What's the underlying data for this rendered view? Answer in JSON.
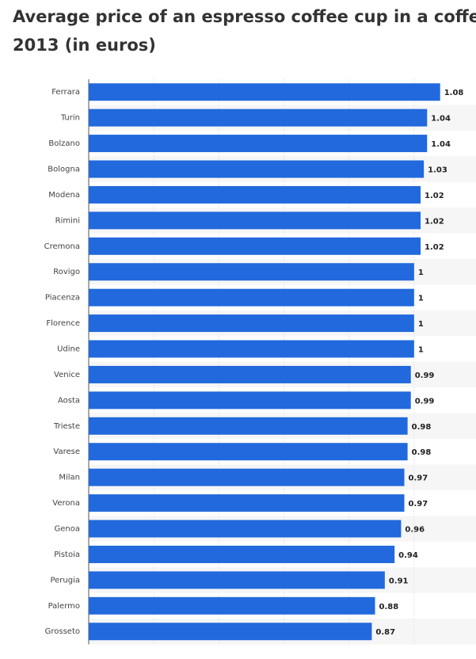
{
  "chart_data": {
    "type": "bar",
    "orientation": "horizontal",
    "title_lines": [
      "Average price of an espresso coffee cup in a coffee",
      "2013 (in euros)"
    ],
    "categories": [
      "Ferrara",
      "Turin",
      "Bolzano",
      "Bologna",
      "Modena",
      "Rimini",
      "Cremona",
      "Rovigo",
      "Piacenza",
      "Florence",
      "Udine",
      "Venice",
      "Aosta",
      "Trieste",
      "Varese",
      "Milan",
      "Verona",
      "Genoa",
      "Pistoia",
      "Perugia",
      "Palermo",
      "Grosseto"
    ],
    "values": [
      1.08,
      1.04,
      1.04,
      1.03,
      1.02,
      1.02,
      1.02,
      1,
      1,
      1,
      1,
      0.99,
      0.99,
      0.98,
      0.98,
      0.97,
      0.97,
      0.96,
      0.94,
      0.91,
      0.88,
      0.87
    ],
    "color": "#2169dc",
    "xlim": [
      0,
      1.2
    ],
    "xticks": [
      0,
      0.2,
      0.4,
      0.6,
      0.8,
      1,
      1.2
    ],
    "grid": true
  }
}
